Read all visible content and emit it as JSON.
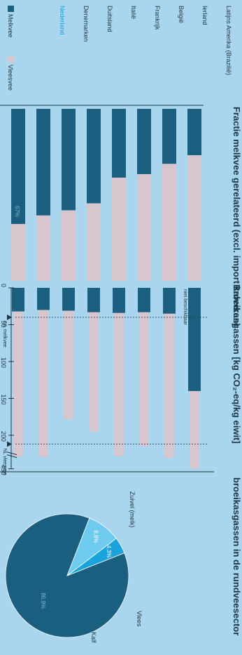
{
  "colors": {
    "background": "#a9d6ee",
    "melkvee": "#1b5f80",
    "vleesvee": "#d8c6cf",
    "highlight": "#1aa3dc",
    "pie_dark": "#1b5f80",
    "pie_mid": "#1aa3dc",
    "pie_light": "#6fcaf0",
    "text": "#1e3542"
  },
  "legend": {
    "melkvee": "Melkvee",
    "vleesvee": "Vleesvee"
  },
  "chart_data": [
    {
      "type": "bar",
      "title": "Fractie melkvee gerelateerd (excl. import kalveren)",
      "categories": [
        "Nederland",
        "Denemarken",
        "Duitsland",
        "Italië",
        "Frankrijk",
        "België",
        "Ierland",
        "Latijns Amerika (Brazilië)"
      ],
      "highlight_category": "Nederland",
      "series": [
        {
          "name": "Melkvee",
          "values": [
            0.67,
            0.62,
            0.59,
            0.55,
            0.4,
            0.38,
            0.32,
            0.27
          ]
        },
        {
          "name": "Vleesvee",
          "values": [
            0.33,
            0.38,
            0.41,
            0.45,
            0.6,
            0.62,
            0.68,
            0.73
          ]
        }
      ],
      "data_labels": {
        "Nederland": "67%"
      },
      "stacked": true,
      "ylim": [
        0,
        1
      ]
    },
    {
      "type": "bar",
      "title": "Broeikasgassen [kg CO₂-eq/kg eiwit]",
      "categories": [
        "Nederland",
        "Denemarken",
        "Duitsland",
        "Italië",
        "Frankrijk",
        "België",
        "Ierland",
        "Latijns Amerika (Brazilië)"
      ],
      "series": [
        {
          "name": "Melkvee",
          "values": [
            32,
            30,
            31,
            33,
            34,
            33,
            35,
            140
          ]
        },
        {
          "name": "Vleesvee",
          "values": [
            222,
            230,
            178,
            195,
            218,
            215,
            242,
            445
          ]
        }
      ],
      "x_ticks": [
        "0",
        "50",
        "100",
        "150",
        "200",
        "450"
      ],
      "axis_break": true,
      "annotation": "niet beschikbaar",
      "markers": [
        {
          "label": "NL melkvee",
          "value": 40
        },
        {
          "label": "NL vleesvee",
          "value": 212
        }
      ],
      "xlim": [
        0,
        450
      ]
    },
    {
      "type": "pie",
      "title": "broeikasgassen in de rundveesector",
      "labels": [
        "Zuivel (melk)",
        "Vlees",
        "Kalf"
      ],
      "values": [
        86.9,
        8.8,
        4.3
      ],
      "data_labels": [
        "86.9%",
        "8,8%",
        "4,3%"
      ]
    }
  ]
}
